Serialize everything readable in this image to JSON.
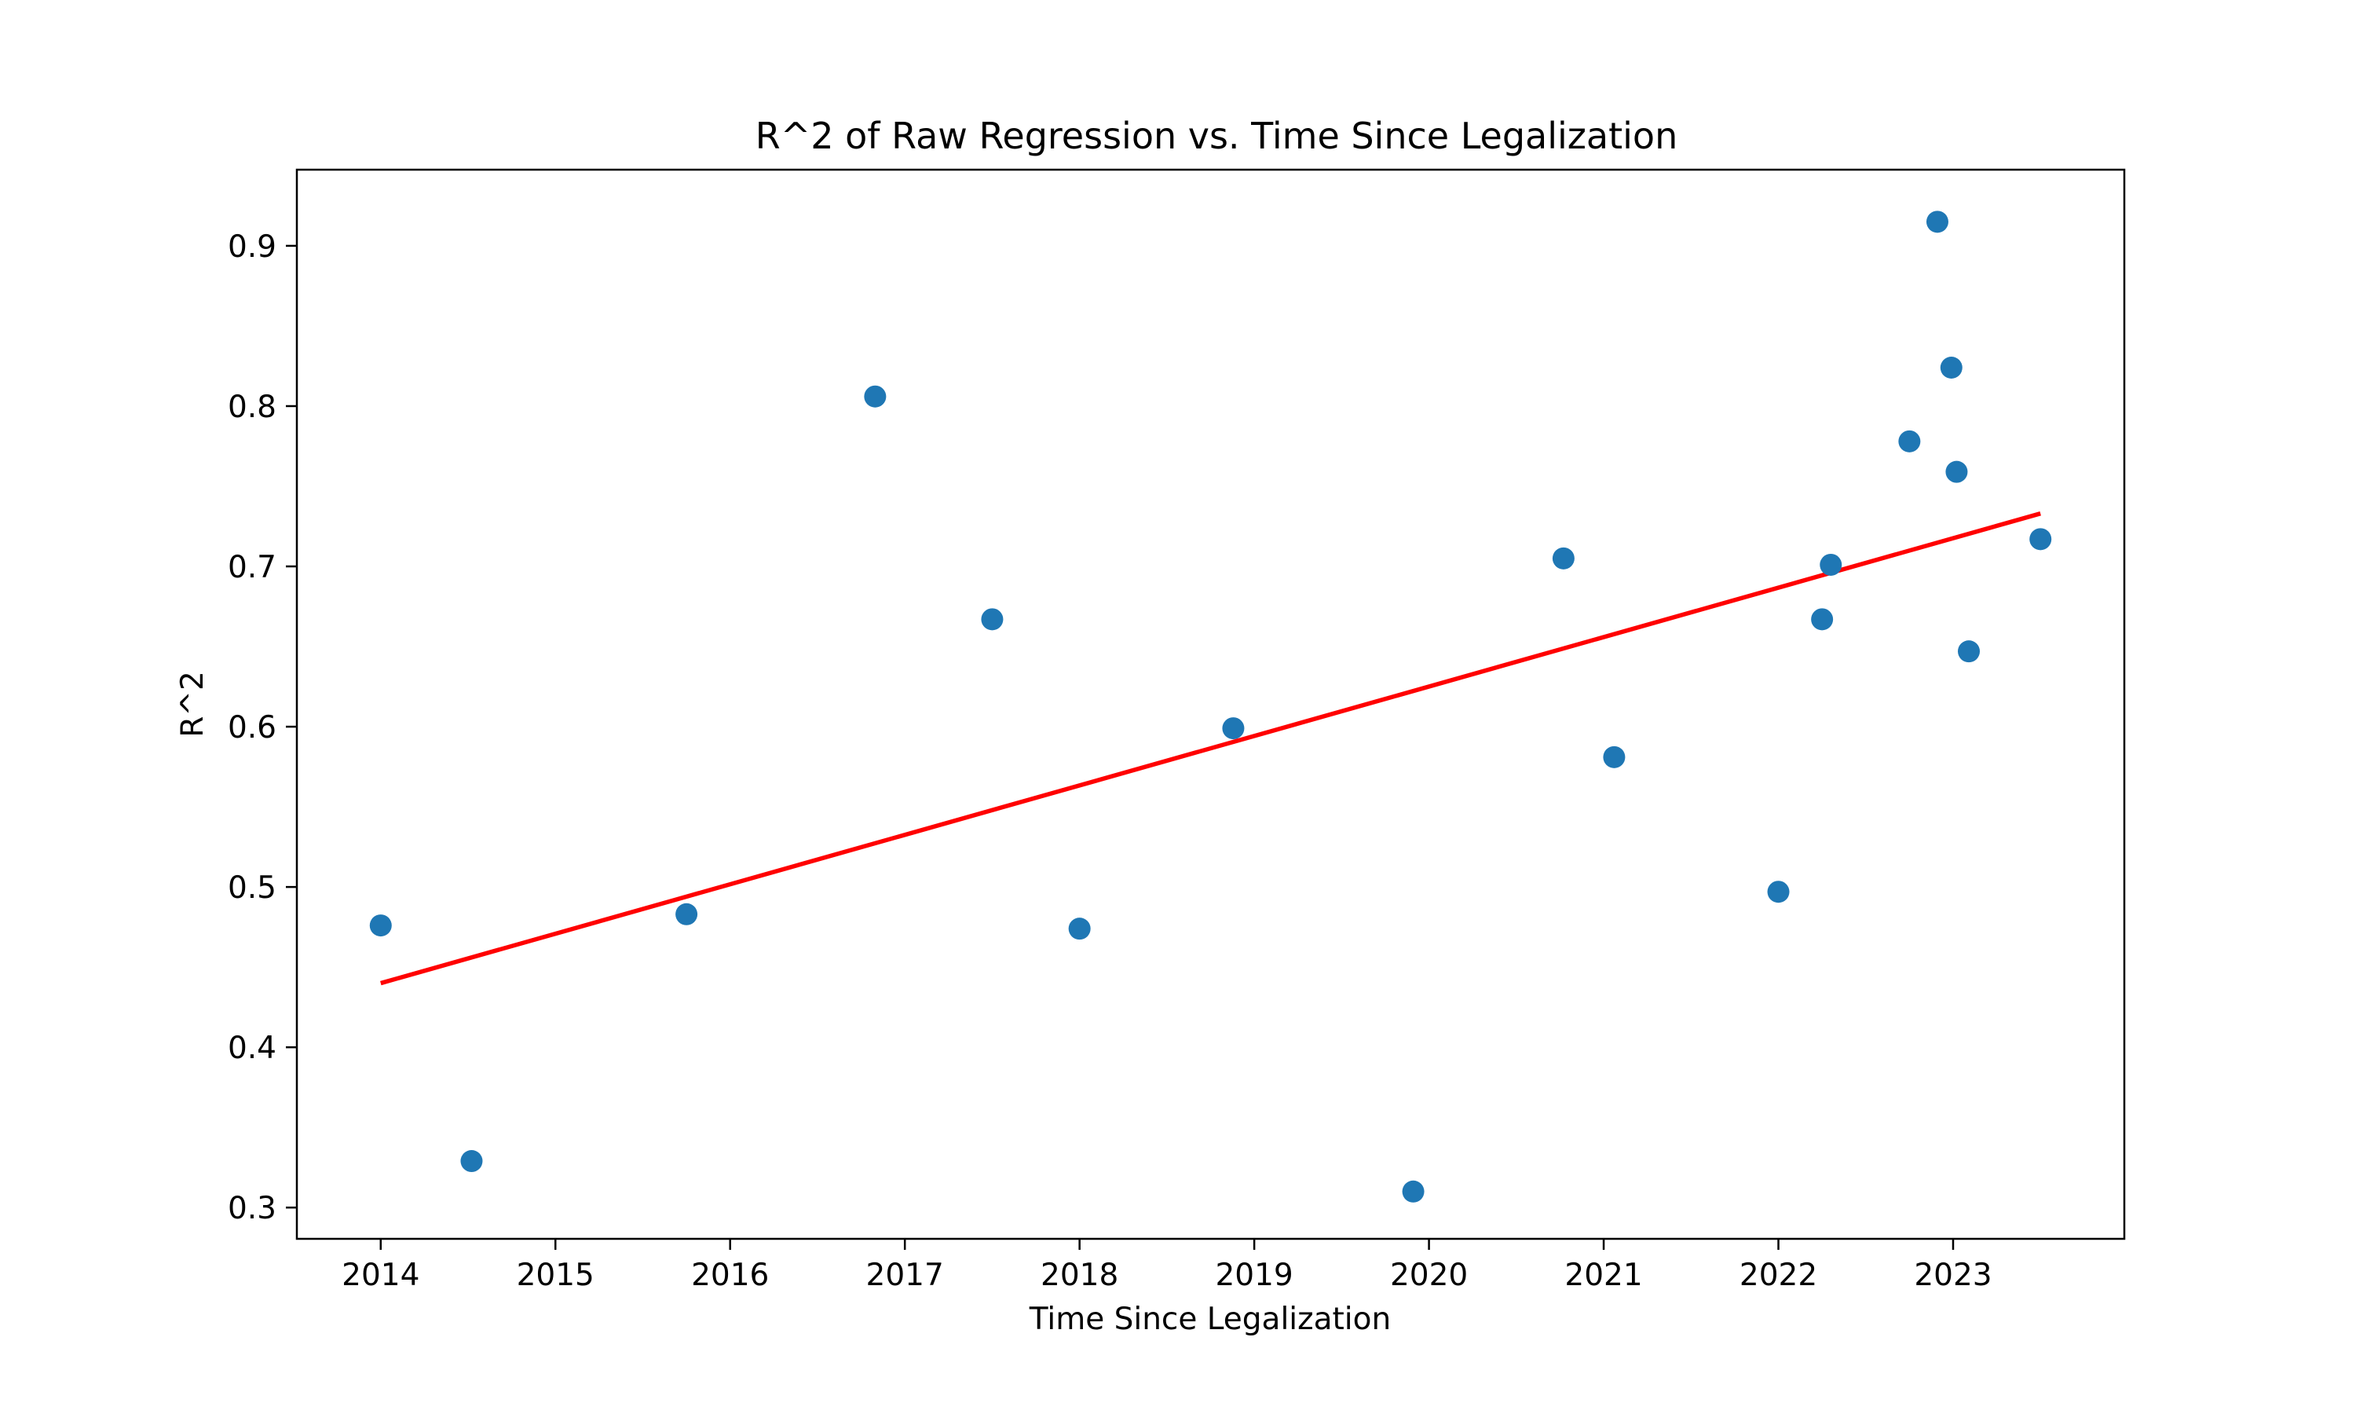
{
  "chart_data": {
    "type": "scatter",
    "title": "R^2 of Raw Regression vs. Time Since Legalization",
    "xlabel": "Time Since Legalization",
    "ylabel": "R^2",
    "xlim": [
      2013.52,
      2023.98
    ],
    "ylim": [
      0.2805,
      0.9475
    ],
    "x_ticks": [
      2014,
      2015,
      2016,
      2017,
      2018,
      2019,
      2020,
      2021,
      2022,
      2023
    ],
    "y_ticks": [
      0.3,
      0.4,
      0.5,
      0.6,
      0.7,
      0.8,
      0.9
    ],
    "y_tick_labels": [
      "0.3",
      "0.4",
      "0.5",
      "0.6",
      "0.7",
      "0.8",
      "0.9"
    ],
    "grid": false,
    "legend": "none",
    "series": [
      {
        "kind": "scatter",
        "color": "#1f77b4",
        "x": [
          2014.0,
          2014.52,
          2015.75,
          2016.83,
          2017.5,
          2018.0,
          2018.88,
          2019.91,
          2020.77,
          2021.06,
          2022.0,
          2022.25,
          2022.3,
          2022.75,
          2022.91,
          2022.99,
          2023.02,
          2023.09,
          2023.5
        ],
        "y": [
          0.476,
          0.329,
          0.483,
          0.806,
          0.667,
          0.474,
          0.599,
          0.31,
          0.705,
          0.581,
          0.497,
          0.667,
          0.701,
          0.778,
          0.915,
          0.824,
          0.759,
          0.647,
          0.717
        ]
      },
      {
        "kind": "line",
        "color": "#ff0000",
        "x": [
          2014.0,
          2023.5
        ],
        "y": [
          0.44,
          0.733
        ]
      }
    ]
  }
}
